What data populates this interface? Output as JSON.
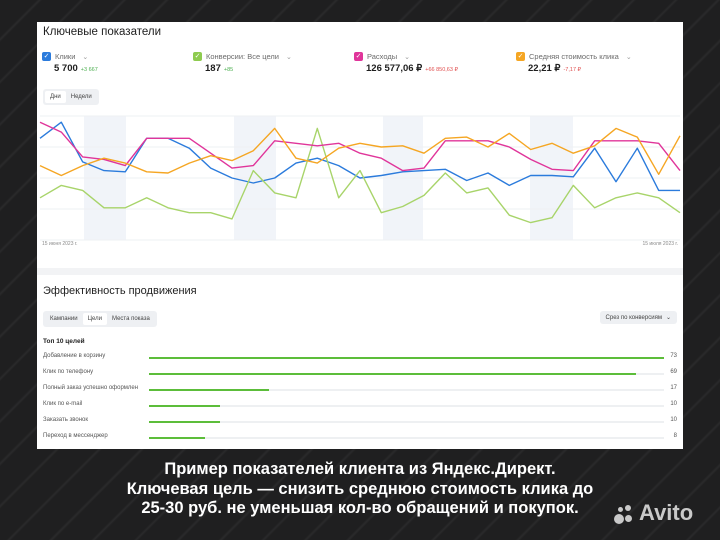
{
  "card1": {
    "title": "Ключевые показатели",
    "legend": [
      {
        "label": "Клики",
        "value": "5 700",
        "delta": "+3 667",
        "color": "#2b7bdc",
        "delta_color": "#4caf50",
        "x": 5
      },
      {
        "label": "Конверсии: Все цели",
        "value": "187",
        "delta": "+85",
        "color": "#8ecb4f",
        "delta_color": "#4caf50",
        "x": 156
      },
      {
        "label": "Расходы",
        "value": "126 577,06 ₽",
        "delta": "+66 850,63 ₽",
        "color": "#e0359a",
        "delta_color": "#e05050",
        "x": 317
      },
      {
        "label": "Средняя стоимость клика",
        "value": "22,21 ₽",
        "delta": "-7,17 ₽",
        "color": "#f5a623",
        "delta_color": "#e05050",
        "x": 479
      }
    ],
    "period_tabs": [
      {
        "label": "Дни",
        "active": true
      },
      {
        "label": "Недели",
        "active": false
      }
    ],
    "chevron": "⌄",
    "check": "✓"
  },
  "chart_data": {
    "type": "line",
    "title": "Ключевые показатели",
    "x_start_label": "15 июня 2023 г.",
    "x_end_label": "15 июля 2023 г.",
    "x_count": 31,
    "ylim": [
      0,
      100
    ],
    "grid": true,
    "weekend_bands": [
      [
        84,
        126
      ],
      [
        234,
        276
      ],
      [
        383,
        423
      ],
      [
        530,
        573
      ]
    ],
    "series": [
      {
        "name": "Клики",
        "color": "#2b7bdc",
        "values": [
          82,
          95,
          63,
          56,
          55,
          82,
          82,
          74,
          58,
          50,
          46,
          50,
          62,
          66,
          60,
          50,
          52,
          55,
          56,
          57,
          48,
          54,
          44,
          52,
          52,
          51,
          74,
          47,
          74,
          40,
          0
        ]
      },
      {
        "name": "Конверсии: Все цели",
        "color": "#a8d46a",
        "values": [
          34,
          44,
          40,
          26,
          26,
          34,
          26,
          22,
          22,
          17,
          56,
          38,
          34,
          90,
          34,
          56,
          22,
          27,
          36,
          54,
          38,
          42,
          20,
          14,
          18,
          44,
          26,
          34,
          38,
          34,
          22
        ]
      },
      {
        "name": "Расходы",
        "color": "#e0359a",
        "values": [
          95,
          87,
          67,
          65,
          60,
          82,
          82,
          82,
          70,
          58,
          60,
          80,
          78,
          76,
          78,
          70,
          66,
          56,
          58,
          80,
          80,
          80,
          75,
          65,
          57,
          56,
          80,
          80,
          80,
          78,
          56
        ]
      },
      {
        "name": "Средняя стоимость клика",
        "color": "#f5a623",
        "values": [
          60,
          52,
          60,
          66,
          62,
          55,
          54,
          62,
          68,
          64,
          72,
          90,
          66,
          62,
          74,
          78,
          75,
          76,
          70,
          82,
          83,
          75,
          86,
          73,
          78,
          70,
          76,
          90,
          83,
          53,
          84
        ]
      }
    ]
  },
  "card2": {
    "title": "Эффективность продвижения",
    "tabs": [
      {
        "label": "Кампании",
        "active": false
      },
      {
        "label": "Цели",
        "active": true
      },
      {
        "label": "Места показа",
        "active": false
      }
    ],
    "dropdown": "Срез по конверсиям",
    "top_label": "Топ 10 целей",
    "goals": [
      {
        "label": "Добавление в корзину",
        "value": 73
      },
      {
        "label": "Клик по телефону",
        "value": 69
      },
      {
        "label": "Полный заказ успешно оформлен",
        "value": 17
      },
      {
        "label": "Клик по e-mail",
        "value": 10
      },
      {
        "label": "Заказать звонок",
        "value": 10
      },
      {
        "label": "Переход в мессенджер",
        "value": 8
      }
    ],
    "max_value": 73
  },
  "caption": {
    "line1": "Пример показателей клиента из Яндекс.Директ.",
    "line2": "Ключевая цель — снизить среднюю стоимость клика до",
    "line3": "25-30 руб. не уменьшая кол-во обращений и покупок."
  },
  "watermark": "Avito"
}
